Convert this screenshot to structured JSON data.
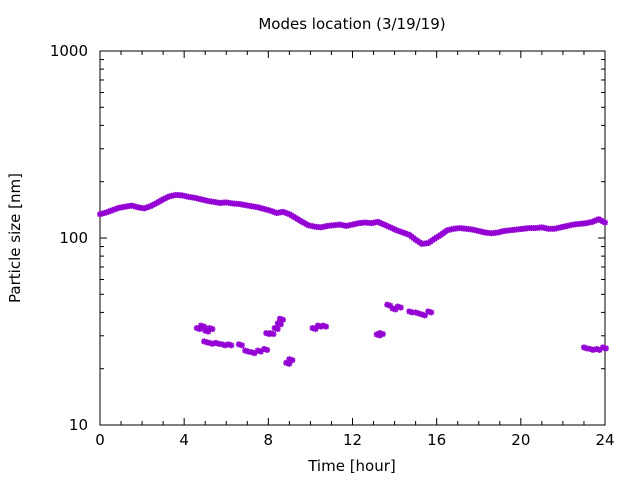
{
  "chart_data": {
    "type": "scatter",
    "title": "Modes location (3/19/19)",
    "xlabel": "Time [hour]",
    "ylabel": "Particle size [nm]",
    "xlim": [
      0,
      24
    ],
    "ylim": [
      10,
      1000
    ],
    "yscale": "log",
    "grid": false,
    "legend": "none",
    "x_ticks": [
      "0",
      "4",
      "8",
      "12",
      "16",
      "20",
      "24"
    ],
    "y_ticks": [
      "10",
      "100",
      "1000"
    ],
    "marker_color": "#9400d3",
    "series": [
      {
        "points": [
          [
            0,
            134
          ],
          [
            0.3,
            137
          ],
          [
            0.6,
            141
          ],
          [
            0.9,
            145
          ],
          [
            1.2,
            147
          ],
          [
            1.5,
            149
          ],
          [
            1.8,
            146
          ],
          [
            2.1,
            144
          ],
          [
            2.4,
            148
          ],
          [
            2.7,
            154
          ],
          [
            3.0,
            161
          ],
          [
            3.3,
            167
          ],
          [
            3.6,
            170
          ],
          [
            3.9,
            169
          ],
          [
            4.2,
            166
          ],
          [
            4.5,
            164
          ],
          [
            4.8,
            161
          ],
          [
            5.1,
            158
          ],
          [
            5.4,
            156
          ],
          [
            5.7,
            154
          ],
          [
            6.0,
            155
          ],
          [
            6.3,
            153
          ],
          [
            6.6,
            152
          ],
          [
            6.9,
            150
          ],
          [
            7.2,
            148
          ],
          [
            7.5,
            146
          ],
          [
            7.8,
            143
          ],
          [
            8.1,
            140
          ],
          [
            8.4,
            136
          ],
          [
            8.7,
            138
          ],
          [
            9.0,
            134
          ],
          [
            9.3,
            128
          ],
          [
            9.6,
            122
          ],
          [
            9.9,
            117
          ],
          [
            10.2,
            115
          ],
          [
            10.5,
            114
          ],
          [
            10.8,
            116
          ],
          [
            11.1,
            117
          ],
          [
            11.4,
            118
          ],
          [
            11.7,
            116
          ],
          [
            12.0,
            118
          ],
          [
            12.3,
            120
          ],
          [
            12.6,
            121
          ],
          [
            12.9,
            120
          ],
          [
            13.2,
            122
          ],
          [
            13.5,
            118
          ],
          [
            13.8,
            114
          ],
          [
            14.1,
            110
          ],
          [
            14.4,
            107
          ],
          [
            14.7,
            104
          ],
          [
            15.0,
            98
          ],
          [
            15.3,
            93
          ],
          [
            15.6,
            94
          ],
          [
            15.9,
            99
          ],
          [
            16.2,
            104
          ],
          [
            16.5,
            110
          ],
          [
            16.8,
            112
          ],
          [
            17.1,
            113
          ],
          [
            17.4,
            112
          ],
          [
            17.7,
            111
          ],
          [
            18.0,
            109
          ],
          [
            18.3,
            107
          ],
          [
            18.6,
            106
          ],
          [
            18.9,
            107
          ],
          [
            19.2,
            109
          ],
          [
            19.5,
            110
          ],
          [
            19.8,
            111
          ],
          [
            20.1,
            112
          ],
          [
            20.4,
            113
          ],
          [
            20.7,
            113
          ],
          [
            21.0,
            114
          ],
          [
            21.3,
            112
          ],
          [
            21.6,
            112
          ],
          [
            21.9,
            114
          ],
          [
            22.2,
            116
          ],
          [
            22.5,
            118
          ],
          [
            22.8,
            119
          ],
          [
            23.1,
            120
          ],
          [
            23.4,
            122
          ],
          [
            23.7,
            126
          ],
          [
            24.0,
            121
          ]
        ]
      },
      {
        "points": [
          [
            4.6,
            33
          ],
          [
            4.8,
            34
          ],
          [
            5.0,
            32
          ],
          [
            5.2,
            33
          ],
          [
            4.95,
            28
          ],
          [
            5.2,
            27.5
          ],
          [
            5.5,
            27.5
          ],
          [
            5.8,
            27
          ],
          [
            6.1,
            27
          ],
          [
            6.6,
            27
          ],
          [
            6.9,
            25
          ],
          [
            7.2,
            24.5
          ],
          [
            7.5,
            25
          ],
          [
            7.8,
            25.5
          ],
          [
            7.9,
            31
          ],
          [
            8.1,
            31
          ],
          [
            8.3,
            33
          ],
          [
            8.45,
            35
          ],
          [
            8.55,
            37
          ],
          [
            8.85,
            21.5
          ],
          [
            9.0,
            22.5
          ],
          [
            10.1,
            33
          ],
          [
            10.35,
            34
          ],
          [
            10.6,
            34
          ],
          [
            13.15,
            30.5
          ],
          [
            13.3,
            31
          ],
          [
            13.65,
            44
          ],
          [
            13.9,
            42
          ],
          [
            14.15,
            43
          ],
          [
            14.7,
            40.5
          ],
          [
            15.0,
            40
          ],
          [
            15.3,
            39
          ],
          [
            15.6,
            40.5
          ],
          [
            23.0,
            26
          ],
          [
            23.3,
            25.5
          ],
          [
            23.6,
            25.5
          ],
          [
            23.9,
            26
          ]
        ]
      }
    ]
  }
}
